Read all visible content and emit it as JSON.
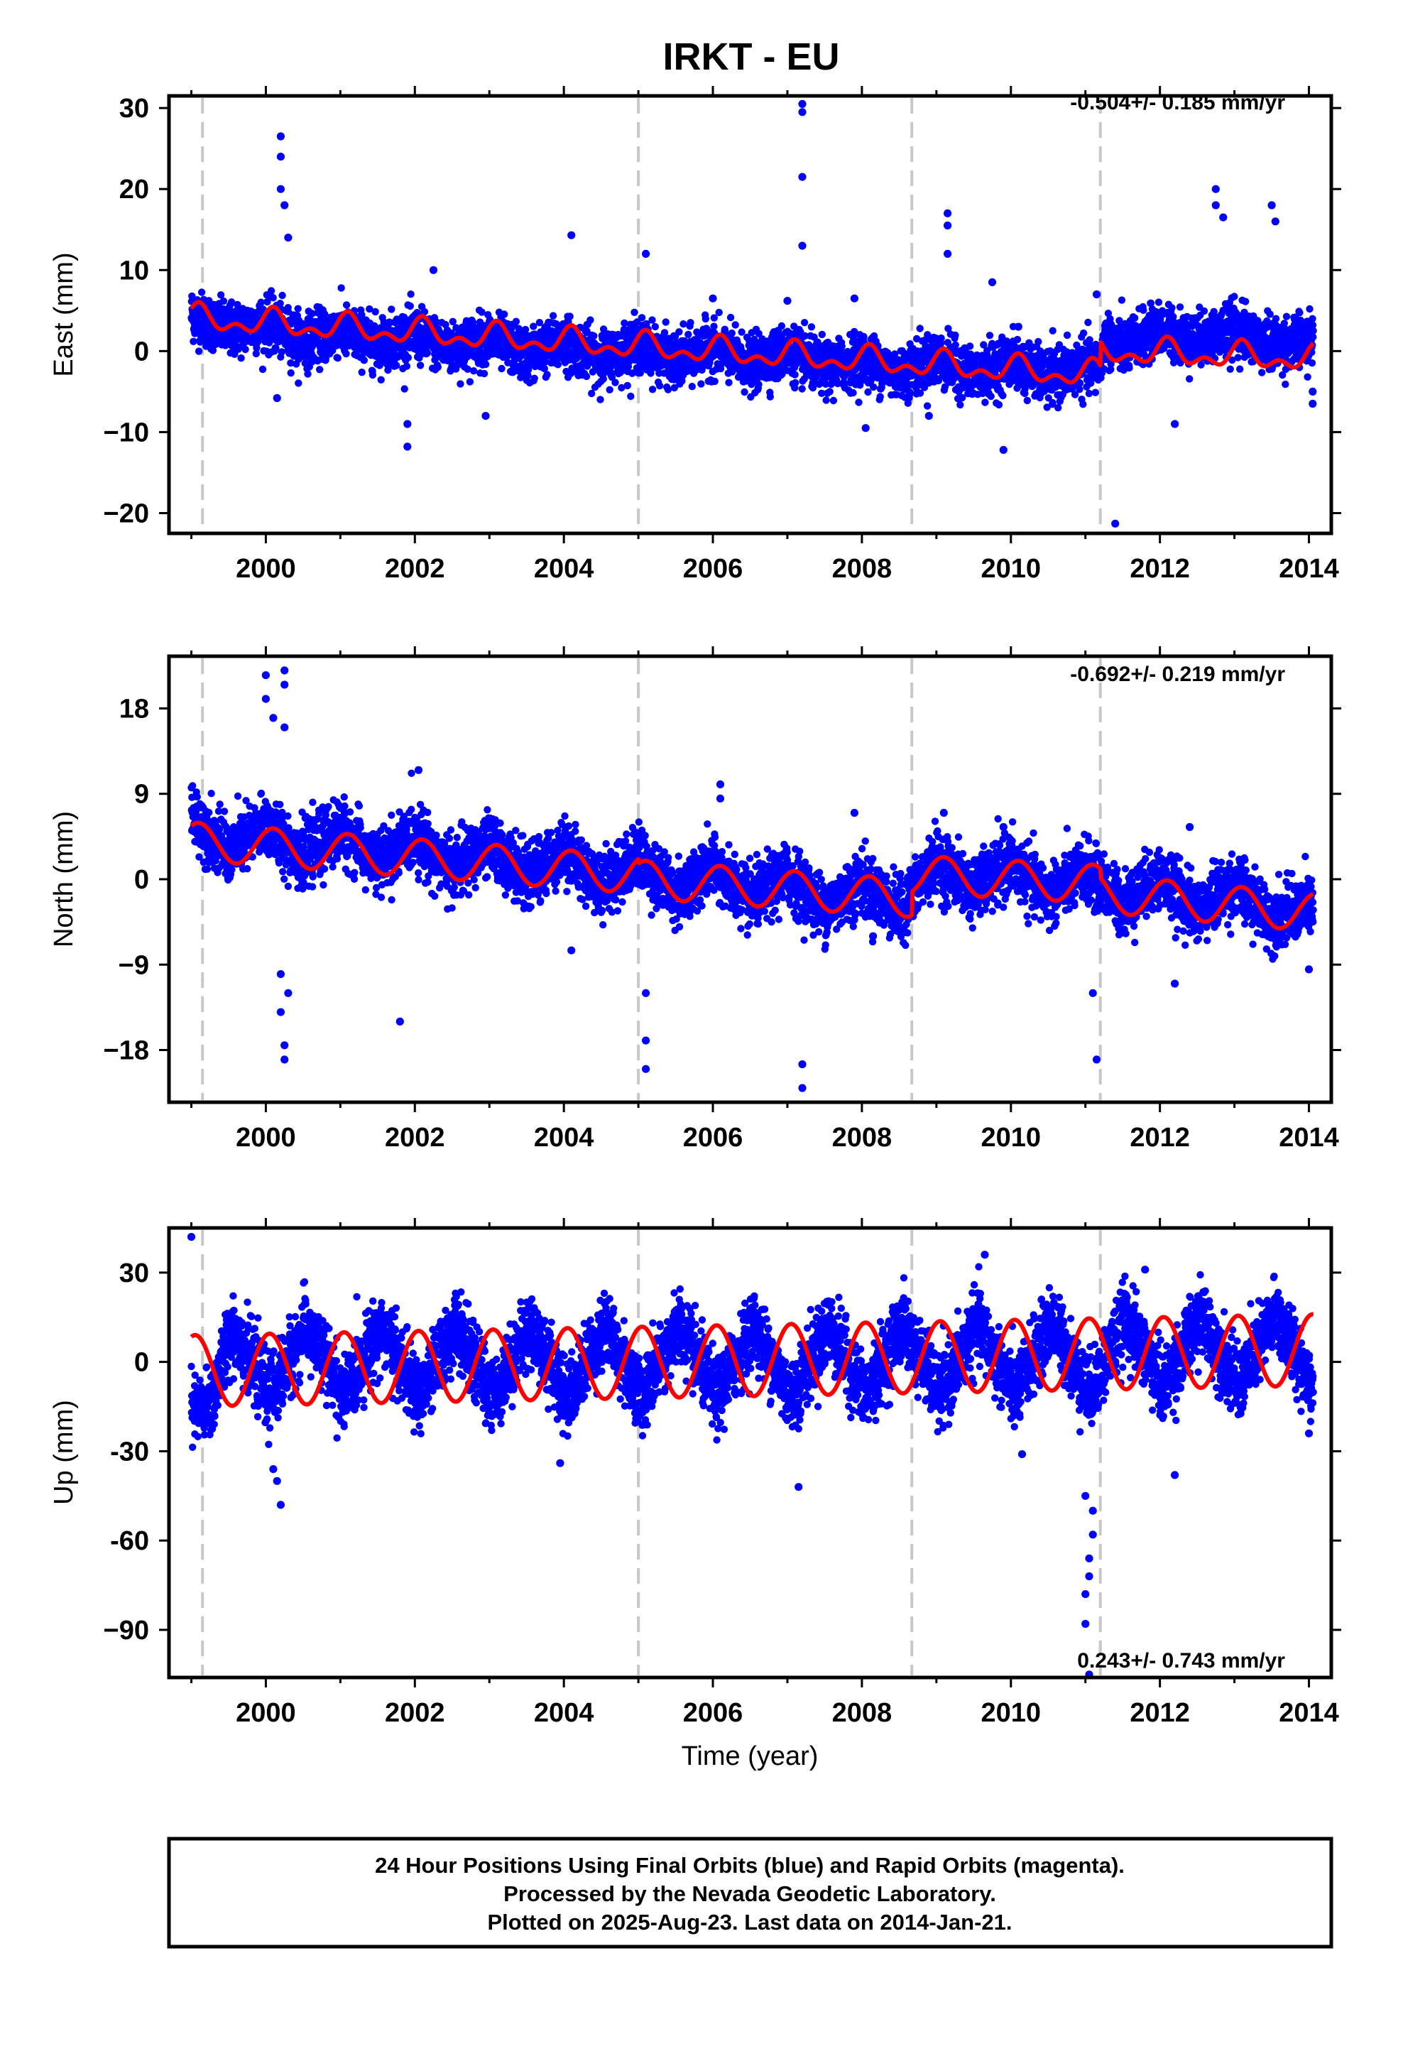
{
  "chart_data": [
    {
      "type": "scatter",
      "id": "east",
      "title": "IRKT - EU",
      "ylabel": "East (mm)",
      "xlabel": "",
      "xlim": [
        1998.7,
        2014.3
      ],
      "ylim": [
        -22.5,
        31.5
      ],
      "xticks": [
        2000,
        2002,
        2004,
        2006,
        2008,
        2010,
        2012,
        2014
      ],
      "yticks": [
        -20,
        -10,
        0,
        10,
        20,
        30
      ],
      "ytick_labels": [
        "−20",
        "−10",
        "0",
        "10",
        "20",
        "30"
      ],
      "rate_text": "-0.504+/- 0.185 mm/yr",
      "rate_position": "top-right",
      "breaks": [
        1999.15,
        2005.0,
        2008.67,
        2011.2
      ],
      "series": [
        {
          "color": "#0000ff",
          "marker": "dot",
          "noise": 1.6,
          "values": [
            [
              1999.0,
              4.6
            ],
            [
              1999.5,
              2.5
            ],
            [
              2000.0,
              3.4
            ],
            [
              2000.5,
              1.2
            ],
            [
              2001.0,
              2.6
            ],
            [
              2001.5,
              0.9
            ],
            [
              2002.0,
              2.1
            ],
            [
              2002.5,
              0.2
            ],
            [
              2003.0,
              1.6
            ],
            [
              2003.5,
              -0.5
            ],
            [
              2004.0,
              1.2
            ],
            [
              2004.5,
              -1.0
            ],
            [
              2005.0,
              0.8
            ],
            [
              2005.5,
              -1.4
            ],
            [
              2006.0,
              0.5
            ],
            [
              2006.5,
              -1.8
            ],
            [
              2007.0,
              0.0
            ],
            [
              2007.5,
              -2.3
            ],
            [
              2008.0,
              -0.9
            ],
            [
              2008.5,
              -2.8
            ],
            [
              2009.0,
              -0.9
            ],
            [
              2009.5,
              -3.1
            ],
            [
              2010.0,
              -1.2
            ],
            [
              2010.5,
              -3.4
            ],
            [
              2011.0,
              -1.7
            ],
            [
              2011.2,
              -2.0
            ],
            [
              2011.25,
              1.5
            ],
            [
              2011.5,
              0.5
            ],
            [
              2012.0,
              2.6
            ],
            [
              2012.5,
              1.2
            ],
            [
              2013.0,
              2.8
            ],
            [
              2013.5,
              0.6
            ],
            [
              2014.06,
              1.5
            ]
          ],
          "outliers": [
            [
              2000.2,
              26.5
            ],
            [
              2000.2,
              24.0
            ],
            [
              2000.2,
              20.0
            ],
            [
              2000.25,
              18.0
            ],
            [
              2000.3,
              14.0
            ],
            [
              2000.15,
              -5.8
            ],
            [
              2001.9,
              -11.8
            ],
            [
              2001.9,
              -9.0
            ],
            [
              2002.25,
              10.0
            ],
            [
              2002.95,
              -8.0
            ],
            [
              2004.1,
              14.3
            ],
            [
              2005.1,
              12.0
            ],
            [
              2006.0,
              6.5
            ],
            [
              2007.2,
              30.5
            ],
            [
              2007.2,
              29.5
            ],
            [
              2007.2,
              21.5
            ],
            [
              2007.2,
              13.0
            ],
            [
              2007.0,
              6.2
            ],
            [
              2007.9,
              6.5
            ],
            [
              2008.05,
              -9.5
            ],
            [
              2008.9,
              -8.0
            ],
            [
              2009.15,
              17.0
            ],
            [
              2009.15,
              15.5
            ],
            [
              2009.15,
              12.0
            ],
            [
              2009.75,
              8.5
            ],
            [
              2009.9,
              -12.2
            ],
            [
              2010.1,
              3.0
            ],
            [
              2011.15,
              7.0
            ],
            [
              2011.4,
              -21.3
            ],
            [
              2012.2,
              -9.0
            ],
            [
              2012.75,
              20.0
            ],
            [
              2012.75,
              18.0
            ],
            [
              2012.85,
              16.5
            ],
            [
              2013.5,
              18.0
            ],
            [
              2013.55,
              16.0
            ],
            [
              2014.05,
              -6.5
            ],
            [
              2014.05,
              -5.0
            ]
          ]
        },
        {
          "color": "#ff0000",
          "marker": "line",
          "model": {
            "trend": [
              [
                1999.0,
                4.0
              ],
              [
                2011.2,
                -3.0
              ],
              [
                2011.21,
                0.0
              ],
              [
                2014.06,
                -1.0
              ]
            ],
            "annual": 1.2,
            "semiannual": 0.9,
            "phase": 0.1
          }
        }
      ]
    },
    {
      "type": "scatter",
      "id": "north",
      "title": "",
      "ylabel": "North (mm)",
      "xlabel": "",
      "xlim": [
        1998.7,
        2014.3
      ],
      "ylim": [
        -23.5,
        23.5
      ],
      "xticks": [
        2000,
        2002,
        2004,
        2006,
        2008,
        2010,
        2012,
        2014
      ],
      "yticks": [
        -18,
        -9,
        0,
        9,
        18
      ],
      "ytick_labels": [
        "−18",
        "−9",
        "0",
        "9",
        "18"
      ],
      "rate_text": "-0.692+/- 0.219 mm/yr",
      "rate_position": "top-right",
      "breaks": [
        1999.15,
        2005.0,
        2008.67,
        2011.2
      ],
      "series": [
        {
          "color": "#0000ff",
          "marker": "dot",
          "noise": 1.6,
          "values": [
            [
              1999.0,
              7.0
            ],
            [
              1999.5,
              2.7
            ],
            [
              2000.0,
              5.8
            ],
            [
              2000.5,
              2.2
            ],
            [
              2001.0,
              5.3
            ],
            [
              2001.5,
              1.5
            ],
            [
              2002.0,
              4.6
            ],
            [
              2002.5,
              0.9
            ],
            [
              2003.0,
              3.8
            ],
            [
              2003.5,
              0.1
            ],
            [
              2004.0,
              3.1
            ],
            [
              2004.5,
              -0.6
            ],
            [
              2005.0,
              2.3
            ],
            [
              2005.5,
              -1.6
            ],
            [
              2006.0,
              1.4
            ],
            [
              2006.5,
              -2.4
            ],
            [
              2007.0,
              0.6
            ],
            [
              2007.5,
              -3.2
            ],
            [
              2008.0,
              -0.2
            ],
            [
              2008.5,
              -3.6
            ],
            [
              2009.0,
              2.1
            ],
            [
              2009.5,
              -1.3
            ],
            [
              2010.0,
              1.7
            ],
            [
              2010.5,
              -1.8
            ],
            [
              2011.0,
              1.0
            ],
            [
              2011.5,
              -2.7
            ],
            [
              2012.0,
              0.2
            ],
            [
              2012.5,
              -3.4
            ],
            [
              2013.0,
              -0.5
            ],
            [
              2013.5,
              -4.1
            ],
            [
              2014.06,
              -2.6
            ]
          ],
          "outliers": [
            [
              2000.0,
              21.5
            ],
            [
              2000.0,
              19.0
            ],
            [
              2000.1,
              17.0
            ],
            [
              2000.25,
              22.0
            ],
            [
              2000.25,
              20.5
            ],
            [
              2000.25,
              16.0
            ],
            [
              2000.2,
              -10.0
            ],
            [
              2000.2,
              -14.0
            ],
            [
              2000.25,
              -17.5
            ],
            [
              2000.25,
              -19.0
            ],
            [
              2000.3,
              -12.0
            ],
            [
              2001.8,
              -15.0
            ],
            [
              2002.05,
              11.5
            ],
            [
              2004.1,
              -7.5
            ],
            [
              2005.1,
              -20.0
            ],
            [
              2005.1,
              -17.0
            ],
            [
              2005.1,
              -12.0
            ],
            [
              2006.1,
              10.0
            ],
            [
              2006.1,
              8.5
            ],
            [
              2007.2,
              -22.0
            ],
            [
              2007.2,
              -19.5
            ],
            [
              2007.9,
              7.0
            ],
            [
              2008.15,
              -6.0
            ],
            [
              2009.1,
              7.0
            ],
            [
              2009.9,
              5.5
            ],
            [
              2011.1,
              -12.0
            ],
            [
              2011.15,
              -19.0
            ],
            [
              2012.2,
              -11.0
            ],
            [
              2012.4,
              5.5
            ],
            [
              2014.0,
              -9.5
            ]
          ]
        },
        {
          "color": "#ff0000",
          "marker": "line",
          "model": {
            "trend": [
              [
                1999.0,
                4.0
              ],
              [
                2005.0,
                0.5
              ],
              [
                2005.01,
                0.0
              ],
              [
                2008.67,
                -2.0
              ],
              [
                2008.68,
                0.5
              ],
              [
                2011.2,
                -0.5
              ],
              [
                2011.21,
                -1.5
              ],
              [
                2014.06,
                -3.5
              ]
            ],
            "annual": 2.0,
            "semiannual": 0.0,
            "phase": 0.1
          }
        }
      ]
    },
    {
      "type": "scatter",
      "id": "up",
      "title": "",
      "ylabel": "Up (mm)",
      "xlabel": "Time (year)",
      "xlim": [
        1998.7,
        2014.3
      ],
      "ylim": [
        -106,
        45
      ],
      "xticks": [
        2000,
        2002,
        2004,
        2006,
        2008,
        2010,
        2012,
        2014
      ],
      "yticks": [
        -90,
        -60,
        -30,
        0,
        30
      ],
      "ytick_labels": [
        "−90",
        "-60",
        "-30",
        "0",
        "30"
      ],
      "rate_text": "0.243+/- 0.743 mm/yr",
      "rate_position": "bottom-right",
      "breaks": [
        1999.15,
        2005.0,
        2008.67,
        2011.2
      ],
      "series": [
        {
          "color": "#0000ff",
          "marker": "dot",
          "noise": 6.0,
          "values": [
            [
              1999.0,
              -17.0
            ],
            [
              1999.25,
              -15.0
            ],
            [
              1999.55,
              11.5
            ],
            [
              2000.05,
              -11.5
            ],
            [
              2000.55,
              12.0
            ],
            [
              2001.05,
              -12.0
            ],
            [
              2001.55,
              12.0
            ],
            [
              2002.05,
              -12.0
            ],
            [
              2002.55,
              12.0
            ],
            [
              2003.05,
              -12.0
            ],
            [
              2003.55,
              12.0
            ],
            [
              2004.05,
              -12.0
            ],
            [
              2004.55,
              12.0
            ],
            [
              2005.05,
              -12.0
            ],
            [
              2005.55,
              12.0
            ],
            [
              2006.05,
              -12.0
            ],
            [
              2006.55,
              12.0
            ],
            [
              2007.05,
              -12.0
            ],
            [
              2007.55,
              12.0
            ],
            [
              2008.05,
              -12.0
            ],
            [
              2008.55,
              12.5
            ],
            [
              2009.05,
              -11.5
            ],
            [
              2009.55,
              13.0
            ],
            [
              2010.05,
              -11.0
            ],
            [
              2010.55,
              13.5
            ],
            [
              2011.05,
              -11.0
            ],
            [
              2011.55,
              15.0
            ],
            [
              2012.05,
              -9.0
            ],
            [
              2012.55,
              15.5
            ],
            [
              2013.05,
              -8.5
            ],
            [
              2013.55,
              16.0
            ],
            [
              2014.06,
              -8.0
            ]
          ],
          "outliers": [
            [
              1999.0,
              42.0
            ],
            [
              2000.2,
              -48.0
            ],
            [
              2000.1,
              -36.0
            ],
            [
              2000.15,
              -40.0
            ],
            [
              2003.95,
              -34.0
            ],
            [
              2007.15,
              -42.0
            ],
            [
              2009.65,
              36.0
            ],
            [
              2010.15,
              -31.0
            ],
            [
              2011.0,
              -88.0
            ],
            [
              2011.0,
              -78.0
            ],
            [
              2011.05,
              -72.0
            ],
            [
              2011.05,
              -66.0
            ],
            [
              2011.1,
              -58.0
            ],
            [
              2011.1,
              -50.0
            ],
            [
              2011.0,
              -45.0
            ],
            [
              2011.05,
              -105.0
            ],
            [
              2011.8,
              31.0
            ],
            [
              2012.2,
              -38.0
            ],
            [
              2014.0,
              -24.0
            ]
          ]
        },
        {
          "color": "#ff0000",
          "marker": "line",
          "model": {
            "trend": [
              [
                1999.0,
                -3.0
              ],
              [
                2014.06,
                4.0
              ]
            ],
            "annual": 12.0,
            "semiannual": 0.0,
            "phase": 0.05
          }
        }
      ]
    }
  ],
  "footer": {
    "line1": "24 Hour Positions Using Final Orbits (blue) and Rapid Orbits (magenta).",
    "line2": "Processed by the Nevada Geodetic Laboratory.",
    "line3": "Plotted on 2025-Aug-23. Last data on 2014-Jan-21."
  }
}
